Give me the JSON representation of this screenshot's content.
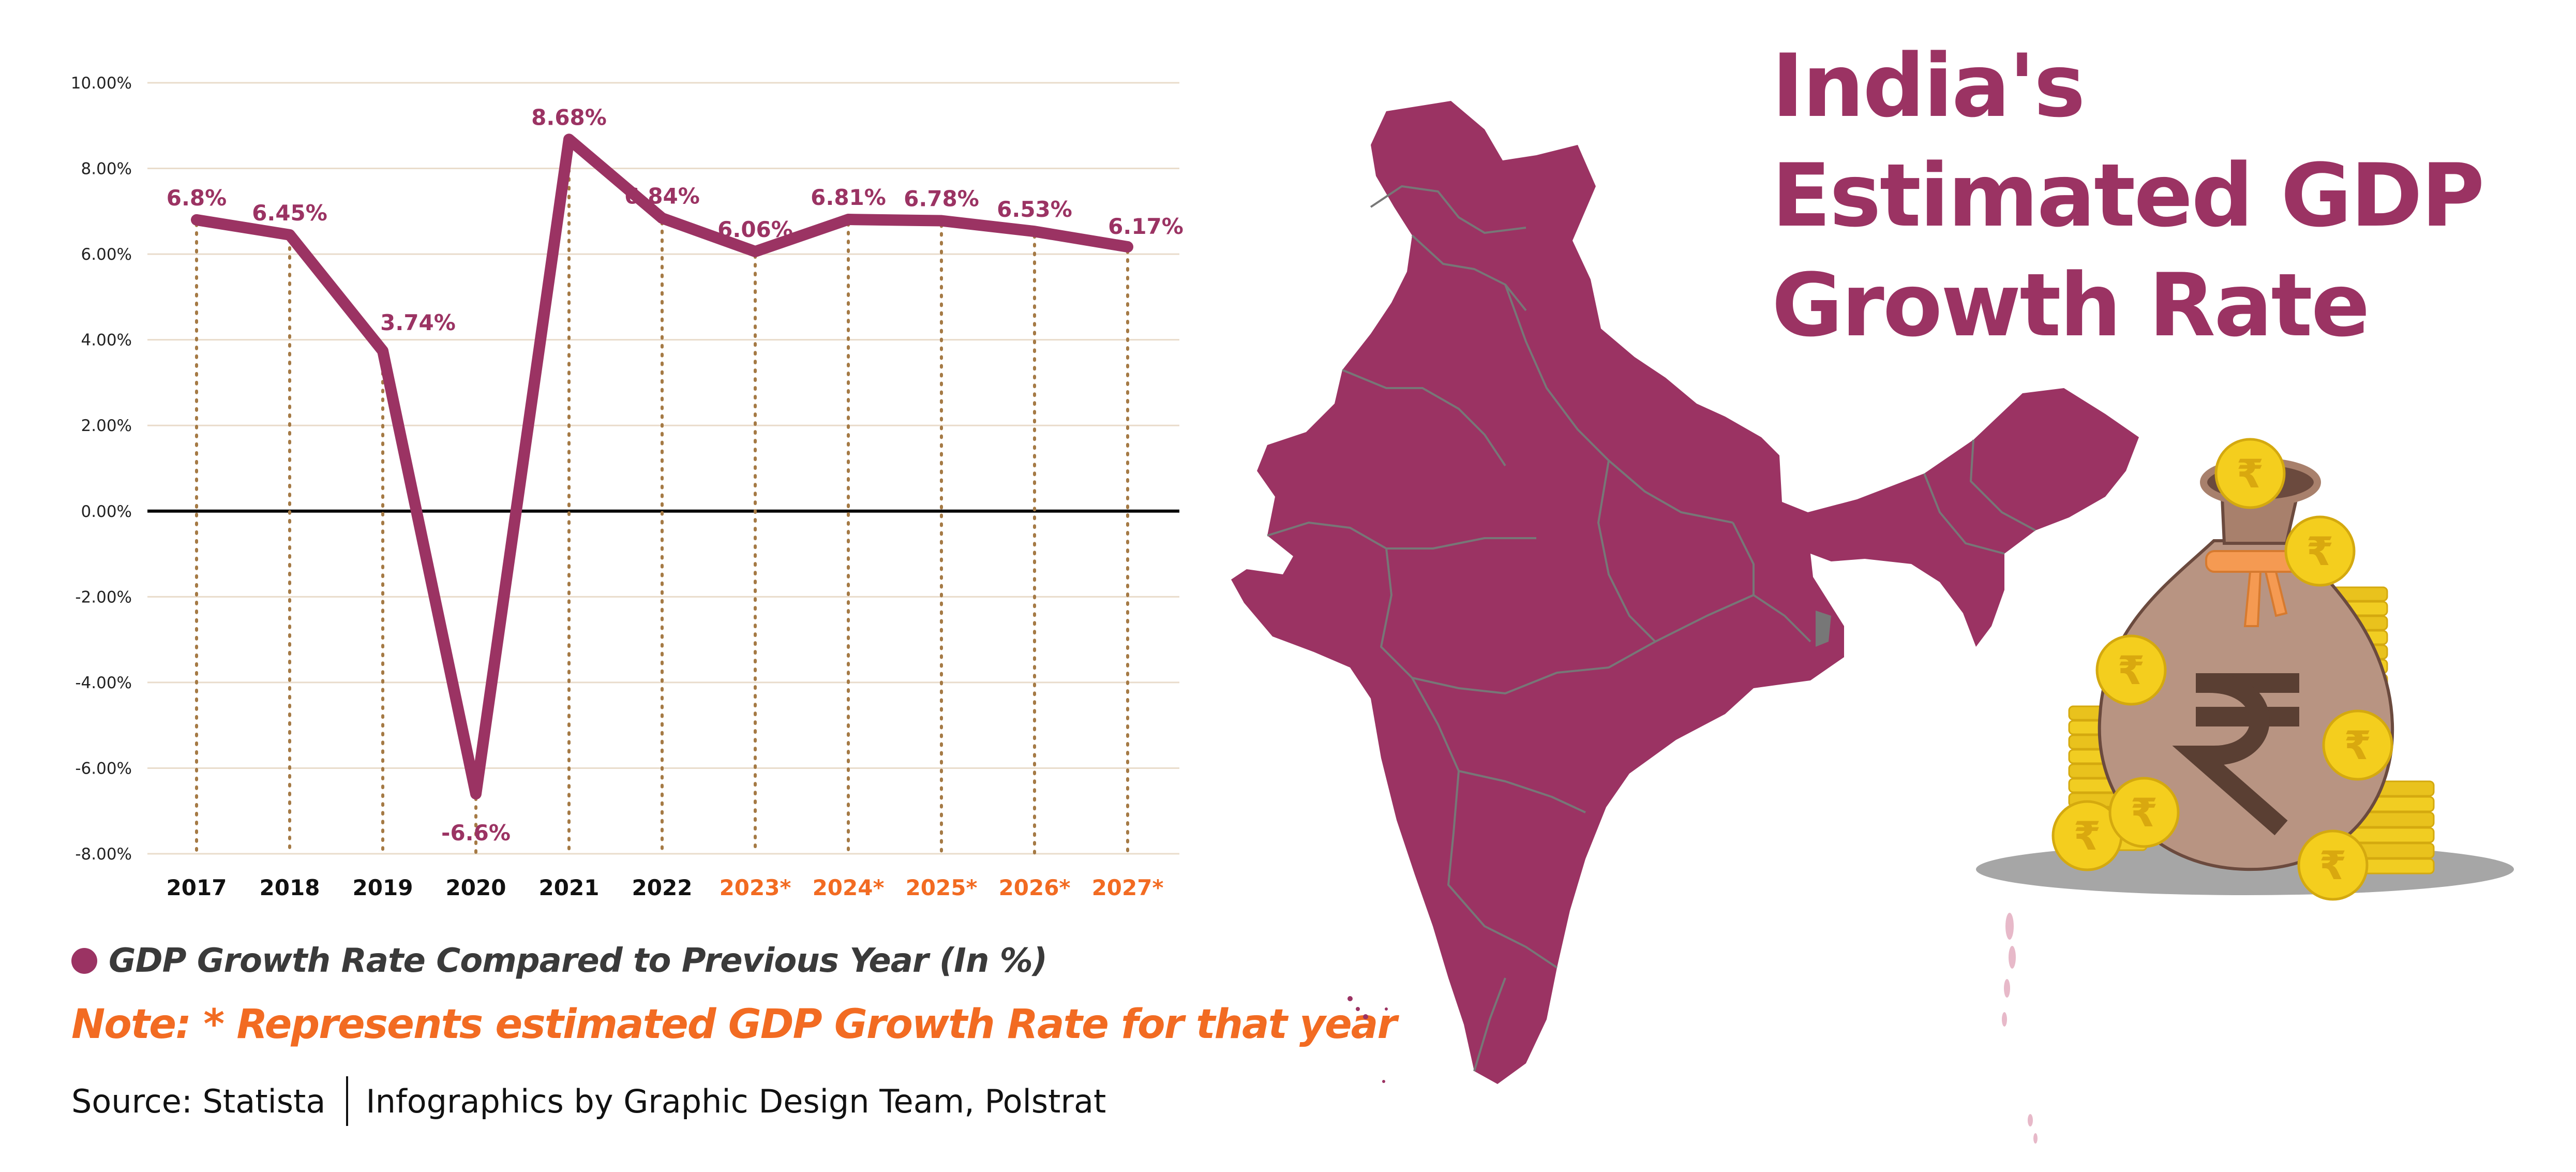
{
  "colors": {
    "primary": "#9B3363",
    "estimate": "#F26B22",
    "zero_line": "#000000",
    "gridline": "#E9DCCB",
    "dotted": "#A57A45"
  },
  "title": {
    "line1": "India's",
    "line2": "Estimated GDP",
    "line3": "Growth Rate"
  },
  "legend": {
    "label": "GDP Growth Rate Compared to Previous Year (In %)"
  },
  "note": "Note: * Represents estimated GDP Growth Rate for that year",
  "source": {
    "left": "Source: Statista",
    "right": "Infographics by Graphic Design Team, Polstrat"
  },
  "chart_data": {
    "type": "line",
    "title": "India's Estimated GDP Growth Rate",
    "xlabel": "",
    "ylabel": "",
    "categories": [
      "2017",
      "2018",
      "2019",
      "2020",
      "2021",
      "2022",
      "2023*",
      "2024*",
      "2025*",
      "2026*",
      "2027*"
    ],
    "estimated": [
      false,
      false,
      false,
      false,
      false,
      false,
      true,
      true,
      true,
      true,
      true
    ],
    "series": [
      {
        "name": "GDP Growth Rate Compared to Previous Year (In %)",
        "values": [
          6.8,
          6.45,
          3.74,
          -6.6,
          8.68,
          6.84,
          6.06,
          6.81,
          6.78,
          6.53,
          6.17
        ],
        "labels": [
          "6.8%",
          "6.45%",
          "3.74%",
          "-6.6%",
          "8.68%",
          "6.84%",
          "6.06%",
          "6.81%",
          "6.78%",
          "6.53%",
          "6.17%"
        ]
      }
    ],
    "ylim": [
      -8,
      10
    ],
    "yticks": [
      10,
      8,
      6,
      4,
      2,
      0,
      -2,
      -4,
      -6,
      -8
    ],
    "ytick_labels": [
      "10.00%",
      "8.00%",
      "6.00%",
      "4.00%",
      "2.00%",
      "0.00%",
      "-2.00%",
      "-4.00%",
      "-6.00%",
      "-8.00%"
    ],
    "grid": true,
    "legend_position": "bottom-left"
  }
}
